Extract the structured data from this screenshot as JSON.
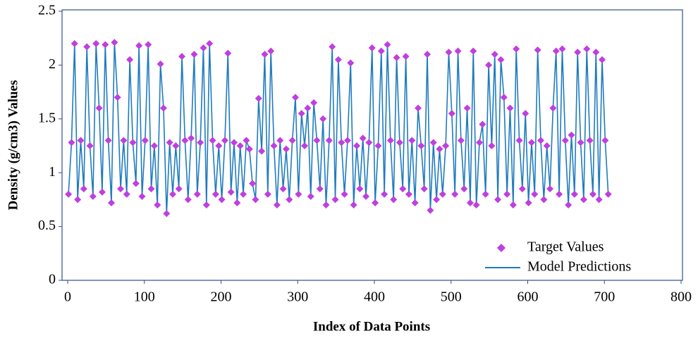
{
  "chart_data": {
    "type": "line_scatter",
    "xlabel": "Index of Data Points",
    "ylabel": "Density (g/cm3) Values",
    "xlim": [
      0,
      800
    ],
    "xticks": [
      0,
      100,
      200,
      300,
      400,
      500,
      600,
      700,
      800
    ],
    "ylim": [
      0,
      2.5
    ],
    "yticks": [
      0,
      0.5,
      1,
      1.5,
      2,
      2.5
    ],
    "legend": "lower-right",
    "x": [
      1,
      5,
      9,
      13,
      17,
      21,
      25,
      29,
      33,
      37,
      41,
      45,
      49,
      53,
      57,
      61,
      65,
      69,
      73,
      77,
      81,
      85,
      89,
      93,
      97,
      101,
      105,
      109,
      113,
      117,
      121,
      125,
      129,
      133,
      137,
      141,
      145,
      149,
      153,
      157,
      161,
      165,
      169,
      173,
      177,
      181,
      185,
      189,
      193,
      197,
      201,
      205,
      209,
      213,
      217,
      221,
      225,
      229,
      233,
      237,
      241,
      245,
      249,
      253,
      257,
      261,
      265,
      269,
      273,
      277,
      281,
      285,
      289,
      293,
      297,
      301,
      305,
      309,
      313,
      317,
      321,
      325,
      329,
      333,
      337,
      341,
      345,
      349,
      353,
      357,
      361,
      365,
      369,
      373,
      377,
      381,
      385,
      389,
      393,
      397,
      401,
      405,
      409,
      413,
      417,
      421,
      425,
      429,
      433,
      437,
      441,
      445,
      449,
      453,
      457,
      461,
      465,
      469,
      473,
      477,
      481,
      485,
      489,
      493,
      497,
      501,
      505,
      509,
      513,
      517,
      521,
      525,
      529,
      533,
      537,
      541,
      545,
      549,
      553,
      557,
      561,
      565,
      569,
      573,
      577,
      581,
      585,
      589,
      593,
      597,
      601,
      605,
      609,
      613,
      617,
      621,
      625,
      629,
      633,
      637,
      641,
      645,
      649,
      653,
      657,
      661,
      665,
      669,
      673,
      677,
      681,
      685,
      689,
      693,
      697,
      701,
      705
    ],
    "series": [
      {
        "name": "Target Values",
        "mark": "diamond",
        "color": "#bf3fe0",
        "values": [
          0.8,
          1.28,
          2.2,
          0.75,
          1.3,
          0.85,
          2.17,
          1.25,
          0.78,
          2.2,
          1.6,
          0.82,
          2.19,
          1.3,
          0.72,
          2.21,
          1.7,
          0.85,
          1.3,
          0.8,
          2.05,
          1.28,
          0.9,
          2.18,
          0.78,
          1.3,
          2.19,
          0.85,
          1.25,
          0.7,
          2.01,
          1.6,
          0.62,
          1.28,
          0.8,
          1.25,
          0.85,
          2.08,
          1.3,
          0.75,
          1.32,
          2.1,
          0.8,
          1.28,
          2.16,
          0.7,
          2.2,
          1.3,
          0.8,
          1.25,
          0.75,
          1.3,
          2.11,
          0.82,
          1.28,
          0.72,
          1.25,
          0.8,
          1.3,
          1.22,
          0.9,
          0.75,
          1.69,
          1.2,
          2.1,
          0.8,
          2.13,
          1.25,
          0.7,
          1.3,
          0.85,
          1.22,
          0.75,
          1.3,
          1.7,
          0.8,
          1.55,
          1.25,
          1.6,
          0.78,
          1.65,
          1.3,
          0.85,
          1.5,
          0.7,
          1.3,
          2.17,
          0.75,
          2.05,
          1.28,
          0.8,
          1.3,
          2.02,
          0.7,
          1.25,
          0.85,
          1.32,
          0.78,
          1.28,
          2.16,
          0.72,
          1.25,
          2.13,
          0.8,
          2.19,
          1.3,
          0.75,
          2.07,
          1.28,
          0.85,
          2.08,
          0.8,
          1.3,
          0.72,
          1.6,
          1.25,
          0.85,
          2.1,
          0.65,
          1.28,
          0.75,
          1.22,
          0.8,
          1.25,
          2.12,
          1.55,
          0.8,
          2.13,
          1.3,
          0.85,
          1.6,
          0.72,
          2.13,
          0.7,
          1.28,
          1.45,
          0.8,
          2.0,
          1.25,
          2.1,
          0.75,
          2.05,
          1.7,
          0.8,
          1.6,
          0.7,
          2.15,
          1.3,
          0.85,
          1.55,
          0.72,
          1.28,
          0.8,
          2.14,
          1.3,
          0.75,
          1.25,
          0.85,
          1.6,
          2.13,
          0.8,
          2.15,
          1.3,
          0.7,
          1.35,
          0.8,
          2.12,
          1.28,
          0.75,
          2.15,
          1.3,
          0.8,
          2.12,
          0.75,
          2.05,
          1.3,
          0.8
        ]
      },
      {
        "name": "Model Predictions",
        "mark": "line",
        "color": "#1f7bbf",
        "values": [
          0.8,
          1.28,
          2.2,
          0.75,
          1.3,
          0.85,
          2.17,
          1.25,
          0.78,
          2.2,
          1.6,
          0.82,
          2.19,
          1.3,
          0.72,
          2.21,
          1.7,
          0.85,
          1.3,
          0.8,
          2.05,
          1.28,
          0.9,
          2.18,
          0.78,
          1.3,
          2.19,
          0.85,
          1.25,
          0.7,
          2.01,
          1.6,
          0.62,
          1.28,
          0.8,
          1.25,
          0.85,
          2.08,
          1.3,
          0.75,
          1.32,
          2.1,
          0.8,
          1.28,
          2.16,
          0.7,
          2.2,
          1.3,
          0.8,
          1.25,
          0.75,
          1.3,
          2.11,
          0.82,
          1.28,
          0.72,
          1.25,
          0.8,
          1.3,
          1.22,
          0.9,
          0.75,
          1.69,
          1.2,
          2.1,
          0.8,
          2.13,
          1.25,
          0.7,
          1.3,
          0.85,
          1.22,
          0.75,
          1.3,
          1.7,
          0.8,
          1.55,
          1.25,
          1.6,
          0.78,
          1.65,
          1.3,
          0.85,
          1.5,
          0.7,
          1.3,
          2.17,
          0.75,
          2.05,
          1.28,
          0.8,
          1.3,
          2.02,
          0.7,
          1.25,
          0.85,
          1.32,
          0.78,
          1.28,
          2.16,
          0.72,
          1.25,
          2.13,
          0.8,
          2.19,
          1.3,
          0.75,
          2.07,
          1.28,
          0.85,
          2.08,
          0.8,
          1.3,
          0.72,
          1.6,
          1.25,
          0.85,
          2.1,
          0.65,
          1.28,
          0.75,
          1.22,
          0.8,
          1.25,
          2.12,
          1.55,
          0.8,
          2.13,
          1.3,
          0.85,
          1.6,
          0.72,
          2.13,
          0.7,
          1.28,
          1.45,
          0.8,
          2.0,
          1.25,
          2.1,
          0.75,
          2.05,
          1.7,
          0.8,
          1.6,
          0.7,
          2.15,
          1.3,
          0.85,
          1.55,
          0.72,
          1.28,
          0.8,
          2.14,
          1.3,
          0.75,
          1.25,
          0.85,
          1.6,
          2.13,
          0.8,
          2.15,
          1.3,
          0.7,
          1.35,
          0.8,
          2.12,
          1.28,
          0.75,
          2.15,
          1.3,
          0.8,
          2.12,
          0.75,
          2.05,
          1.3,
          0.8
        ]
      }
    ]
  }
}
